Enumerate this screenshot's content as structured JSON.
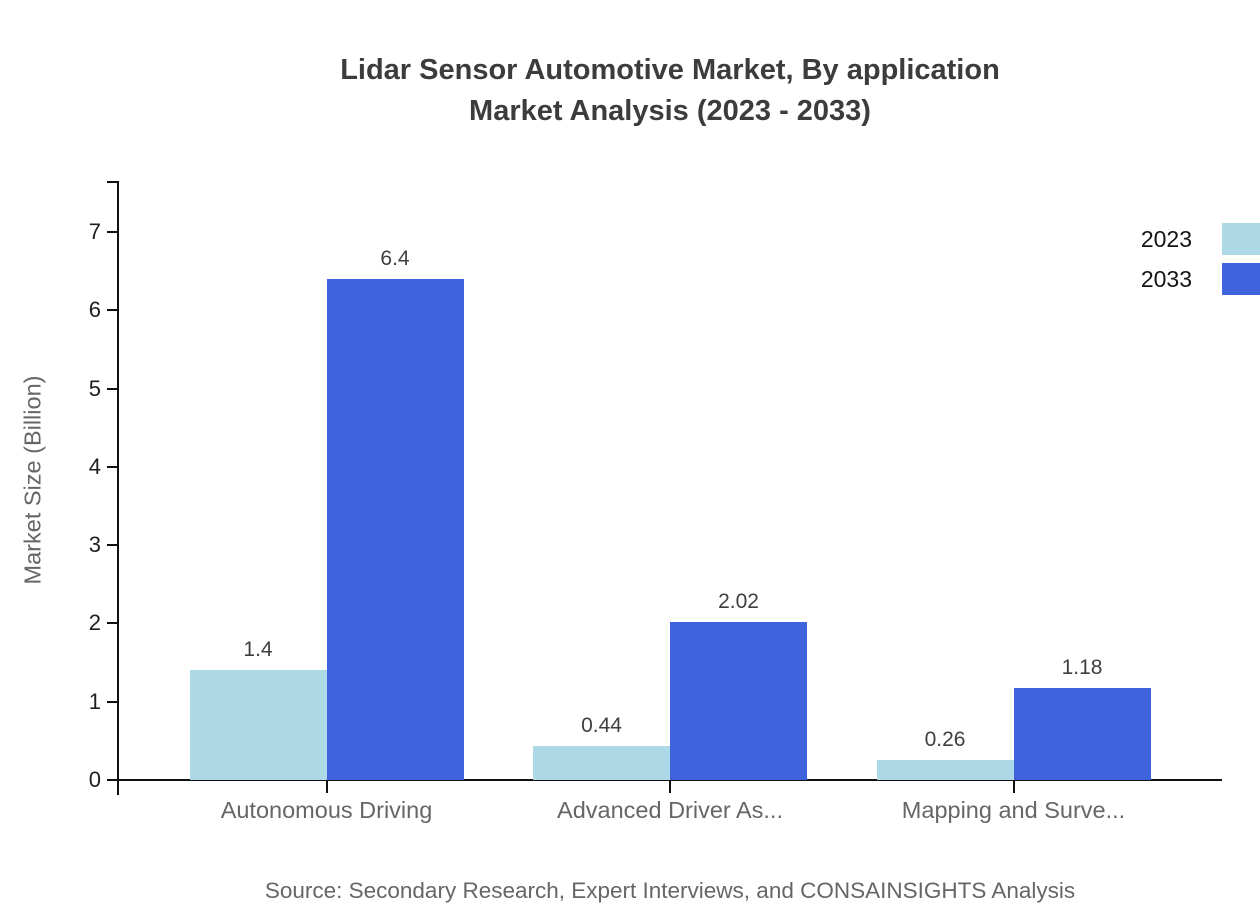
{
  "title": {
    "line1": "Lidar Sensor Automotive Market, By application",
    "line2": "Market Analysis (2023 - 2033)"
  },
  "source": "Source: Secondary Research, Expert Interviews, and CONSAINSIGHTS Analysis",
  "chart_data": {
    "type": "bar",
    "title": "Lidar Sensor Automotive Market, By application Market Analysis (2023 - 2033)",
    "xlabel": "",
    "ylabel": "Market Size (Billion)",
    "categories": [
      "Autonomous Driving",
      "Advanced Driver As...",
      "Mapping and Surve..."
    ],
    "series": [
      {
        "name": "2023",
        "color": "#ADD8E6",
        "values": [
          1.4,
          0.44,
          0.26
        ],
        "labels": [
          "1.4",
          "0.44",
          "0.26"
        ]
      },
      {
        "name": "2033",
        "color": "#3E63DC",
        "values": [
          6.4,
          2.02,
          1.18
        ],
        "labels": [
          "6.4",
          "2.02",
          "1.18"
        ]
      }
    ],
    "yticks": [
      0,
      1,
      2,
      3,
      4,
      5,
      6,
      7
    ],
    "ylim": [
      0,
      7.65
    ],
    "grid": false,
    "legend_position": "top-right",
    "axis_color": "#111111"
  }
}
